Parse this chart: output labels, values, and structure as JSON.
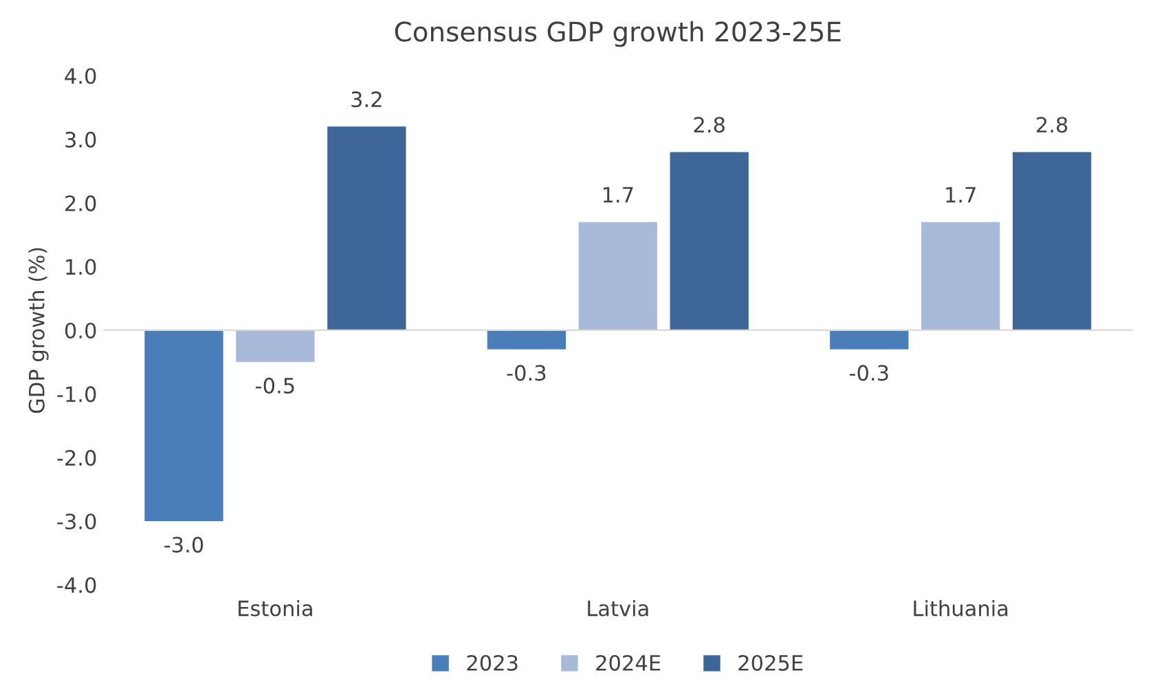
{
  "chart_data": {
    "type": "bar",
    "title": "Consensus GDP growth 2023-25E",
    "ylabel": "GDP growth (%)",
    "categories": [
      "Estonia",
      "Latvia",
      "Lithuania"
    ],
    "series": [
      {
        "name": "2023",
        "color": "#4a7ebb",
        "values": [
          -3.0,
          -0.3,
          -0.3
        ],
        "value_labels": [
          "-3.0",
          "-0.3",
          "-0.3"
        ]
      },
      {
        "name": "2024E",
        "color": "#a9b9d9",
        "values": [
          -0.5,
          1.7,
          1.7
        ],
        "value_labels": [
          "-0.5",
          "1.7",
          "1.7"
        ]
      },
      {
        "name": "2025E",
        "color": "#3e6699",
        "values": [
          3.2,
          2.8,
          2.8
        ],
        "value_labels": [
          "3.2",
          "2.8",
          "2.8"
        ]
      }
    ],
    "ylim": [
      -4.0,
      4.0
    ],
    "yticks": [
      {
        "value": -4,
        "label": "-4.0"
      },
      {
        "value": -3,
        "label": "-3.0"
      },
      {
        "value": -2,
        "label": "-2.0"
      },
      {
        "value": -1,
        "label": "-1.0"
      },
      {
        "value": 0,
        "label": "0.0"
      },
      {
        "value": 1,
        "label": "1.0"
      },
      {
        "value": 2,
        "label": "2.0"
      },
      {
        "value": 3,
        "label": "3.0"
      },
      {
        "value": 4,
        "label": "4.0"
      }
    ],
    "legend": "bottom"
  }
}
